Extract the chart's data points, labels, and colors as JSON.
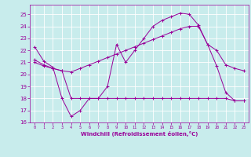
{
  "xlabel": "Windchill (Refroidissement éolien,°C)",
  "xlim": [
    -0.5,
    23.5
  ],
  "ylim": [
    16,
    25.8
  ],
  "yticks": [
    16,
    17,
    18,
    19,
    20,
    21,
    22,
    23,
    24,
    25
  ],
  "xticks": [
    0,
    1,
    2,
    3,
    4,
    5,
    6,
    7,
    8,
    9,
    10,
    11,
    12,
    13,
    14,
    15,
    16,
    17,
    18,
    19,
    20,
    21,
    22,
    23
  ],
  "bg_color": "#c8ecec",
  "grid_color": "#ffffff",
  "line_color": "#990099",
  "line1_y": [
    22.3,
    21.1,
    20.6,
    18.0,
    16.5,
    17.0,
    18.0,
    18.0,
    19.0,
    22.5,
    21.0,
    22.0,
    23.0,
    24.0,
    24.5,
    24.8,
    25.1,
    25.0,
    24.1,
    22.5,
    20.7,
    18.5,
    17.8,
    17.8
  ],
  "line2_y": [
    21.0,
    20.7,
    20.5,
    20.3,
    18.0,
    18.0,
    18.0,
    18.0,
    18.0,
    18.0,
    18.0,
    18.0,
    18.0,
    18.0,
    18.0,
    18.0,
    18.0,
    18.0,
    18.0,
    18.0,
    18.0,
    18.0,
    17.8,
    17.8
  ],
  "line3_y": [
    21.2,
    20.8,
    20.5,
    20.3,
    20.2,
    20.5,
    20.8,
    21.1,
    21.4,
    21.7,
    22.0,
    22.3,
    22.6,
    22.9,
    23.2,
    23.5,
    23.8,
    24.0,
    24.0,
    22.5,
    22.0,
    20.8,
    20.5,
    20.3
  ]
}
